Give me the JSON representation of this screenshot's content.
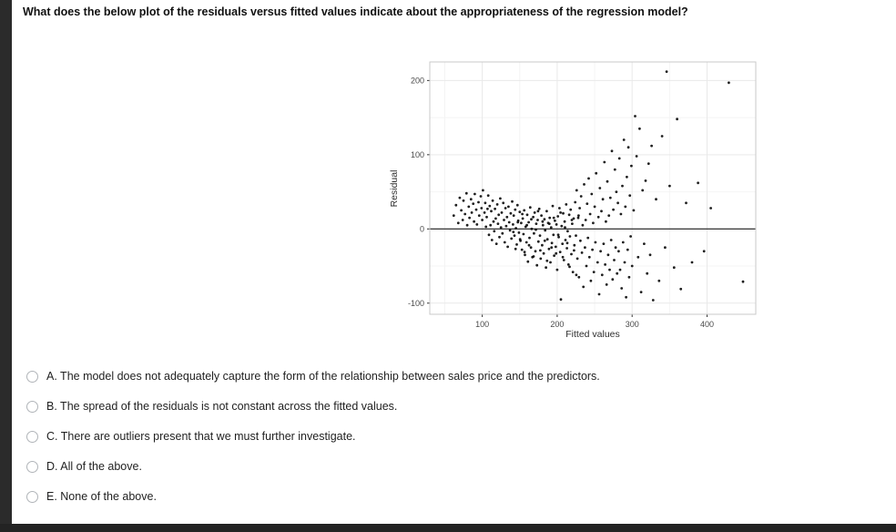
{
  "question": "What does the below plot of the residuals versus fitted values indicate about the appropriateness of the regression model?",
  "options": [
    {
      "id": "A",
      "text": "A. The model does not adequately capture the form of the relationship between sales price and the predictors."
    },
    {
      "id": "B",
      "text": "B. The spread of the residuals is not constant across the fitted values."
    },
    {
      "id": "C",
      "text": "C. There are outliers present that we must further investigate."
    },
    {
      "id": "D",
      "text": "D. All of the above."
    },
    {
      "id": "E",
      "text": "E. None of the above."
    }
  ],
  "colors": {
    "point": "#000000",
    "grid_major": "#e9e9e9",
    "grid_minor": "#f4f4f4",
    "panel_border": "#c9c9c9",
    "zero_line": "#000000",
    "edge_bars": "#2b2b2b"
  },
  "chart_data": {
    "type": "scatter",
    "title": "",
    "xlabel": "Fitted values",
    "ylabel": "Residual",
    "xlim": [
      30,
      465
    ],
    "ylim": [
      -115,
      225
    ],
    "x_ticks": [
      100,
      200,
      300,
      400
    ],
    "y_ticks": [
      -100,
      0,
      100,
      200
    ],
    "x_minor": [
      50,
      150,
      250,
      350
    ],
    "y_minor": [
      -50,
      50,
      150
    ],
    "zero_line": true,
    "legend": "none",
    "points": [
      [
        62,
        18
      ],
      [
        65,
        32
      ],
      [
        68,
        8
      ],
      [
        70,
        42
      ],
      [
        72,
        25
      ],
      [
        74,
        12
      ],
      [
        75,
        38
      ],
      [
        77,
        20
      ],
      [
        79,
        48
      ],
      [
        80,
        5
      ],
      [
        82,
        30
      ],
      [
        83,
        15
      ],
      [
        85,
        40
      ],
      [
        86,
        22
      ],
      [
        88,
        34
      ],
      [
        89,
        10
      ],
      [
        90,
        47
      ],
      [
        92,
        26
      ],
      [
        93,
        6
      ],
      [
        95,
        36
      ],
      [
        96,
        18
      ],
      [
        98,
        44
      ],
      [
        99,
        28
      ],
      [
        100,
        12
      ],
      [
        101,
        52
      ],
      [
        103,
        22
      ],
      [
        104,
        35
      ],
      [
        105,
        3
      ],
      [
        107,
        27
      ],
      [
        108,
        45
      ],
      [
        106,
        16
      ],
      [
        109,
        -8
      ],
      [
        110,
        31
      ],
      [
        111,
        5
      ],
      [
        112,
        24
      ],
      [
        113,
        -15
      ],
      [
        114,
        38
      ],
      [
        115,
        10
      ],
      [
        116,
        -3
      ],
      [
        117,
        27
      ],
      [
        118,
        14
      ],
      [
        119,
        -20
      ],
      [
        120,
        33
      ],
      [
        121,
        7
      ],
      [
        122,
        19
      ],
      [
        123,
        -11
      ],
      [
        124,
        41
      ],
      [
        125,
        2
      ],
      [
        126,
        22
      ],
      [
        127,
        -6
      ],
      [
        128,
        35
      ],
      [
        129,
        12
      ],
      [
        130,
        -18
      ],
      [
        131,
        28
      ],
      [
        132,
        4
      ],
      [
        133,
        16
      ],
      [
        134,
        -24
      ],
      [
        135,
        30
      ],
      [
        136,
        9
      ],
      [
        137,
        -2
      ],
      [
        138,
        21
      ],
      [
        139,
        -13
      ],
      [
        140,
        37
      ],
      [
        141,
        6
      ],
      [
        142,
        18
      ],
      [
        143,
        -9
      ],
      [
        144,
        26
      ],
      [
        145,
        1
      ],
      [
        146,
        -21
      ],
      [
        147,
        32
      ],
      [
        148,
        11
      ],
      [
        149,
        -5
      ],
      [
        150,
        23
      ],
      [
        151,
        -16
      ],
      [
        152,
        8
      ],
      [
        141.5,
        -4
      ],
      [
        144.5,
        -27
      ],
      [
        147.5,
        9
      ],
      [
        150.5,
        -14
      ],
      [
        153.5,
        20
      ],
      [
        156.5,
        -31
      ],
      [
        159.5,
        5
      ],
      [
        162.5,
        -22
      ],
      [
        165.5,
        13
      ],
      [
        168.5,
        -37
      ],
      [
        171.5,
        -1
      ],
      [
        174.5,
        24
      ],
      [
        177.5,
        -29
      ],
      [
        180.5,
        10
      ],
      [
        183.5,
        -16
      ],
      [
        186.5,
        -43
      ],
      [
        189.5,
        7
      ],
      [
        192.5,
        -25
      ],
      [
        195.5,
        15
      ],
      [
        198.5,
        -33
      ],
      [
        201.5,
        -8
      ],
      [
        204.5,
        22
      ],
      [
        207.5,
        -38
      ],
      [
        210.5,
        2
      ],
      [
        213.5,
        -19
      ],
      [
        216.5,
        -51
      ],
      [
        219.5,
        12
      ],
      [
        222.5,
        -29
      ],
      [
        225.5,
        -62
      ],
      [
        228.5,
        18
      ],
      [
        153,
        -28
      ],
      [
        154,
        14
      ],
      [
        155,
        -7
      ],
      [
        156,
        25
      ],
      [
        157,
        -35
      ],
      [
        158,
        3
      ],
      [
        159,
        -18
      ],
      [
        160,
        19
      ],
      [
        161,
        -44
      ],
      [
        162,
        9
      ],
      [
        163,
        -12
      ],
      [
        164,
        29
      ],
      [
        165,
        -25
      ],
      [
        166,
        0
      ],
      [
        167,
        -38
      ],
      [
        168,
        16
      ],
      [
        169,
        -6
      ],
      [
        170,
        22
      ],
      [
        171,
        -30
      ],
      [
        172,
        7
      ],
      [
        173,
        -49
      ],
      [
        174,
        12
      ],
      [
        175,
        -17
      ],
      [
        176,
        27
      ],
      [
        177,
        -9
      ],
      [
        178,
        -40
      ],
      [
        179,
        18
      ],
      [
        180,
        -22
      ],
      [
        181,
        5
      ],
      [
        182,
        -33
      ],
      [
        183,
        13
      ],
      [
        184,
        -2
      ],
      [
        185,
        -52
      ],
      [
        186,
        24
      ],
      [
        187,
        -14
      ],
      [
        188,
        8
      ],
      [
        189,
        -27
      ],
      [
        190,
        15
      ],
      [
        191,
        -45
      ],
      [
        192,
        2
      ],
      [
        193,
        -19
      ],
      [
        194,
        31
      ],
      [
        195,
        -8
      ],
      [
        196,
        -36
      ],
      [
        197,
        11
      ],
      [
        198,
        -24
      ],
      [
        199,
        6
      ],
      [
        200,
        -55
      ],
      [
        201,
        17
      ],
      [
        202,
        -11
      ],
      [
        203,
        28
      ],
      [
        204,
        -31
      ],
      [
        205,
        -95
      ],
      [
        206,
        4
      ],
      [
        207,
        -20
      ],
      [
        208,
        21
      ],
      [
        209,
        -42
      ],
      [
        210,
        10
      ],
      [
        211,
        -15
      ],
      [
        212,
        33
      ],
      [
        213,
        -26
      ],
      [
        214,
        -3
      ],
      [
        215,
        -48
      ],
      [
        216,
        19
      ],
      [
        217,
        -10
      ],
      [
        218,
        26
      ],
      [
        219,
        -34
      ],
      [
        220,
        7
      ],
      [
        221,
        -58
      ],
      [
        222,
        14
      ],
      [
        223,
        -22
      ],
      [
        224,
        36
      ],
      [
        225,
        -9
      ],
      [
        226,
        52
      ],
      [
        227,
        -40
      ],
      [
        228,
        15
      ],
      [
        229,
        -65
      ],
      [
        230,
        28
      ],
      [
        231,
        -16
      ],
      [
        232,
        44
      ],
      [
        233,
        -32
      ],
      [
        234,
        5
      ],
      [
        235,
        -78
      ],
      [
        236,
        60
      ],
      [
        237,
        -25
      ],
      [
        238,
        12
      ],
      [
        239,
        -50
      ],
      [
        240,
        34
      ],
      [
        241,
        -12
      ],
      [
        242,
        68
      ],
      [
        243,
        -38
      ],
      [
        244,
        20
      ],
      [
        245,
        -70
      ],
      [
        246,
        47
      ],
      [
        247,
        -28
      ],
      [
        248,
        8
      ],
      [
        249,
        -58
      ],
      [
        250,
        30
      ],
      [
        251,
        -18
      ],
      [
        252,
        75
      ],
      [
        254,
        -45
      ],
      [
        255,
        16
      ],
      [
        256,
        -88
      ],
      [
        257,
        55
      ],
      [
        258,
        -30
      ],
      [
        259,
        24
      ],
      [
        260,
        -62
      ],
      [
        261,
        40
      ],
      [
        262,
        -20
      ],
      [
        263,
        90
      ],
      [
        264,
        -48
      ],
      [
        265,
        10
      ],
      [
        266,
        -75
      ],
      [
        267,
        64
      ],
      [
        268,
        -35
      ],
      [
        269,
        18
      ],
      [
        270,
        -55
      ],
      [
        271,
        42
      ],
      [
        272,
        -15
      ],
      [
        273,
        105
      ],
      [
        274,
        -68
      ],
      [
        275,
        26
      ],
      [
        276,
        -42
      ],
      [
        277,
        80
      ],
      [
        278,
        -25
      ],
      [
        279,
        50
      ],
      [
        280,
        -60
      ],
      [
        281,
        35
      ],
      [
        282,
        -30
      ],
      [
        283,
        95
      ],
      [
        284,
        -55
      ],
      [
        285,
        20
      ],
      [
        286,
        -80
      ],
      [
        287,
        58
      ],
      [
        288,
        -18
      ],
      [
        289,
        120
      ],
      [
        290,
        -45
      ],
      [
        291,
        30
      ],
      [
        292,
        -92
      ],
      [
        293,
        70
      ],
      [
        294,
        -28
      ],
      [
        295,
        110
      ],
      [
        296,
        -65
      ],
      [
        297,
        45
      ],
      [
        298,
        -10
      ],
      [
        299,
        85
      ],
      [
        300,
        -50
      ],
      [
        302,
        25
      ],
      [
        304,
        152
      ],
      [
        306,
        98
      ],
      [
        308,
        -38
      ],
      [
        310,
        135
      ],
      [
        312,
        -85
      ],
      [
        314,
        52
      ],
      [
        316,
        -20
      ],
      [
        318,
        65
      ],
      [
        320,
        -60
      ],
      [
        322,
        88
      ],
      [
        324,
        -35
      ],
      [
        326,
        112
      ],
      [
        328,
        -96
      ],
      [
        332,
        40
      ],
      [
        336,
        -70
      ],
      [
        340,
        125
      ],
      [
        344,
        -25
      ],
      [
        350,
        58
      ],
      [
        356,
        -52
      ],
      [
        346,
        212
      ],
      [
        360,
        148
      ],
      [
        365,
        -81
      ],
      [
        372,
        35
      ],
      [
        380,
        -45
      ],
      [
        388,
        62
      ],
      [
        396,
        -30
      ],
      [
        405,
        28
      ],
      [
        429,
        197
      ],
      [
        448,
        -71
      ]
    ]
  }
}
